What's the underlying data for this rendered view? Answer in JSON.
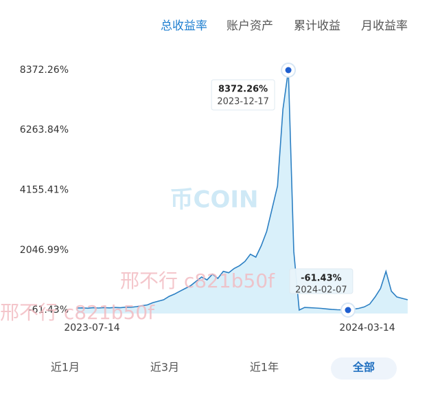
{
  "tabs": [
    "总收益率",
    "账户资产",
    "累计收益",
    "月收益率"
  ],
  "active_tab": 0,
  "ranges": [
    "近1月",
    "近3月",
    "近1年",
    "全部"
  ],
  "active_range": 3,
  "logo": "币COIN",
  "watermark": "邢不行 c821b50f",
  "chart_data": {
    "type": "line",
    "color": "#2b7fc3",
    "fill": "#d9f0fa",
    "ylim": [
      -61.43,
      8372.26
    ],
    "yticks": [
      {
        "value": 8372.26,
        "label": "8372.26%"
      },
      {
        "value": 6263.84,
        "label": "6263.84%"
      },
      {
        "value": 4155.41,
        "label": "4155.41%"
      },
      {
        "value": 2046.99,
        "label": "2046.99%"
      },
      {
        "value": -61.43,
        "label": "-61.43%"
      }
    ],
    "categories": [
      "2023-07-14",
      null,
      null,
      null,
      null,
      null,
      null,
      null,
      null,
      null,
      null,
      null,
      null,
      null,
      null,
      null,
      null,
      null,
      null,
      null,
      null,
      null,
      null,
      null,
      null,
      null,
      null,
      null,
      null,
      null,
      null,
      null,
      null,
      null,
      null,
      null,
      null,
      null,
      null,
      "2023-12-17",
      null,
      "2024-02-07",
      null,
      null,
      null,
      null,
      null,
      null,
      null,
      null,
      "2024-03-14",
      null,
      null,
      null,
      null,
      null,
      null,
      null,
      null,
      null,
      null,
      null
    ],
    "values": [
      10,
      15,
      5,
      20,
      10,
      25,
      15,
      30,
      20,
      40,
      35,
      60,
      90,
      120,
      200,
      250,
      300,
      420,
      500,
      600,
      700,
      800,
      950,
      1100,
      1000,
      1200,
      1050,
      1300,
      1250,
      1400,
      1500,
      1650,
      1900,
      1800,
      2200,
      2700,
      3500,
      4300,
      7000,
      8372.26,
      2000,
      -61.43,
      30,
      20,
      10,
      0,
      -20,
      -40,
      -50,
      -55,
      -61.43,
      -30,
      0,
      50,
      150,
      400,
      700,
      1300,
      600,
      400,
      350,
      300
    ],
    "value_labels": [
      null,
      null,
      null,
      null,
      null,
      null,
      null,
      null,
      null,
      null,
      null,
      null,
      null,
      null,
      null,
      null,
      null,
      null,
      null,
      null,
      null,
      null,
      null,
      null,
      null,
      null,
      null,
      null,
      null,
      null,
      null,
      null,
      null,
      null,
      null,
      null,
      null,
      null,
      null,
      "8372.26%",
      null,
      "-61.43%",
      null,
      null,
      null,
      null,
      null,
      null,
      null,
      null,
      null,
      null,
      null,
      null,
      null,
      null,
      null,
      null,
      null,
      null,
      null,
      null
    ]
  }
}
